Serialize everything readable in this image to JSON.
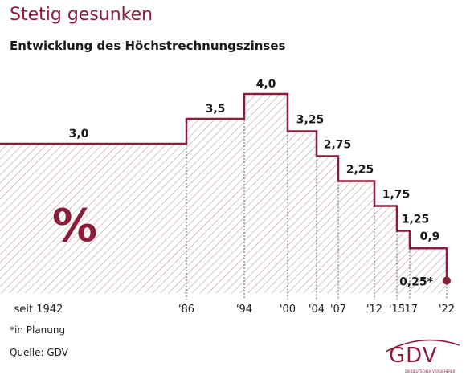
{
  "header": {
    "title": "Stetig gesunken",
    "subtitle": "Entwicklung des Höchstrechnungszinses"
  },
  "colors": {
    "accent": "#8b1d3b",
    "hatch": "#b89a9e"
  },
  "chart_data": {
    "type": "area",
    "step": true,
    "x_ticks": [
      "seit 1942",
      "'86",
      "'94",
      "'00",
      "'04",
      "'07",
      "'12",
      "'15",
      "'17",
      "'22"
    ],
    "x": [
      1942,
      1986,
      1994,
      2000,
      2004,
      2007,
      2012,
      2015,
      2017,
      2022
    ],
    "values": [
      3.0,
      3.5,
      4.0,
      3.25,
      2.75,
      2.25,
      1.75,
      1.25,
      0.9,
      0.25
    ],
    "data_labels": [
      "3,0",
      "3,5",
      "4,0",
      "3,25",
      "2,75",
      "2,25",
      "1,75",
      "1,25",
      "0,9",
      "0,25*"
    ],
    "unit_label": "%",
    "ylim": [
      0,
      4.0
    ]
  },
  "footnote": "*in Planung",
  "source": "Quelle: GDV",
  "logo": {
    "text": "GDV",
    "subtext": "DIE DEUTSCHEN VERSICHERER"
  }
}
